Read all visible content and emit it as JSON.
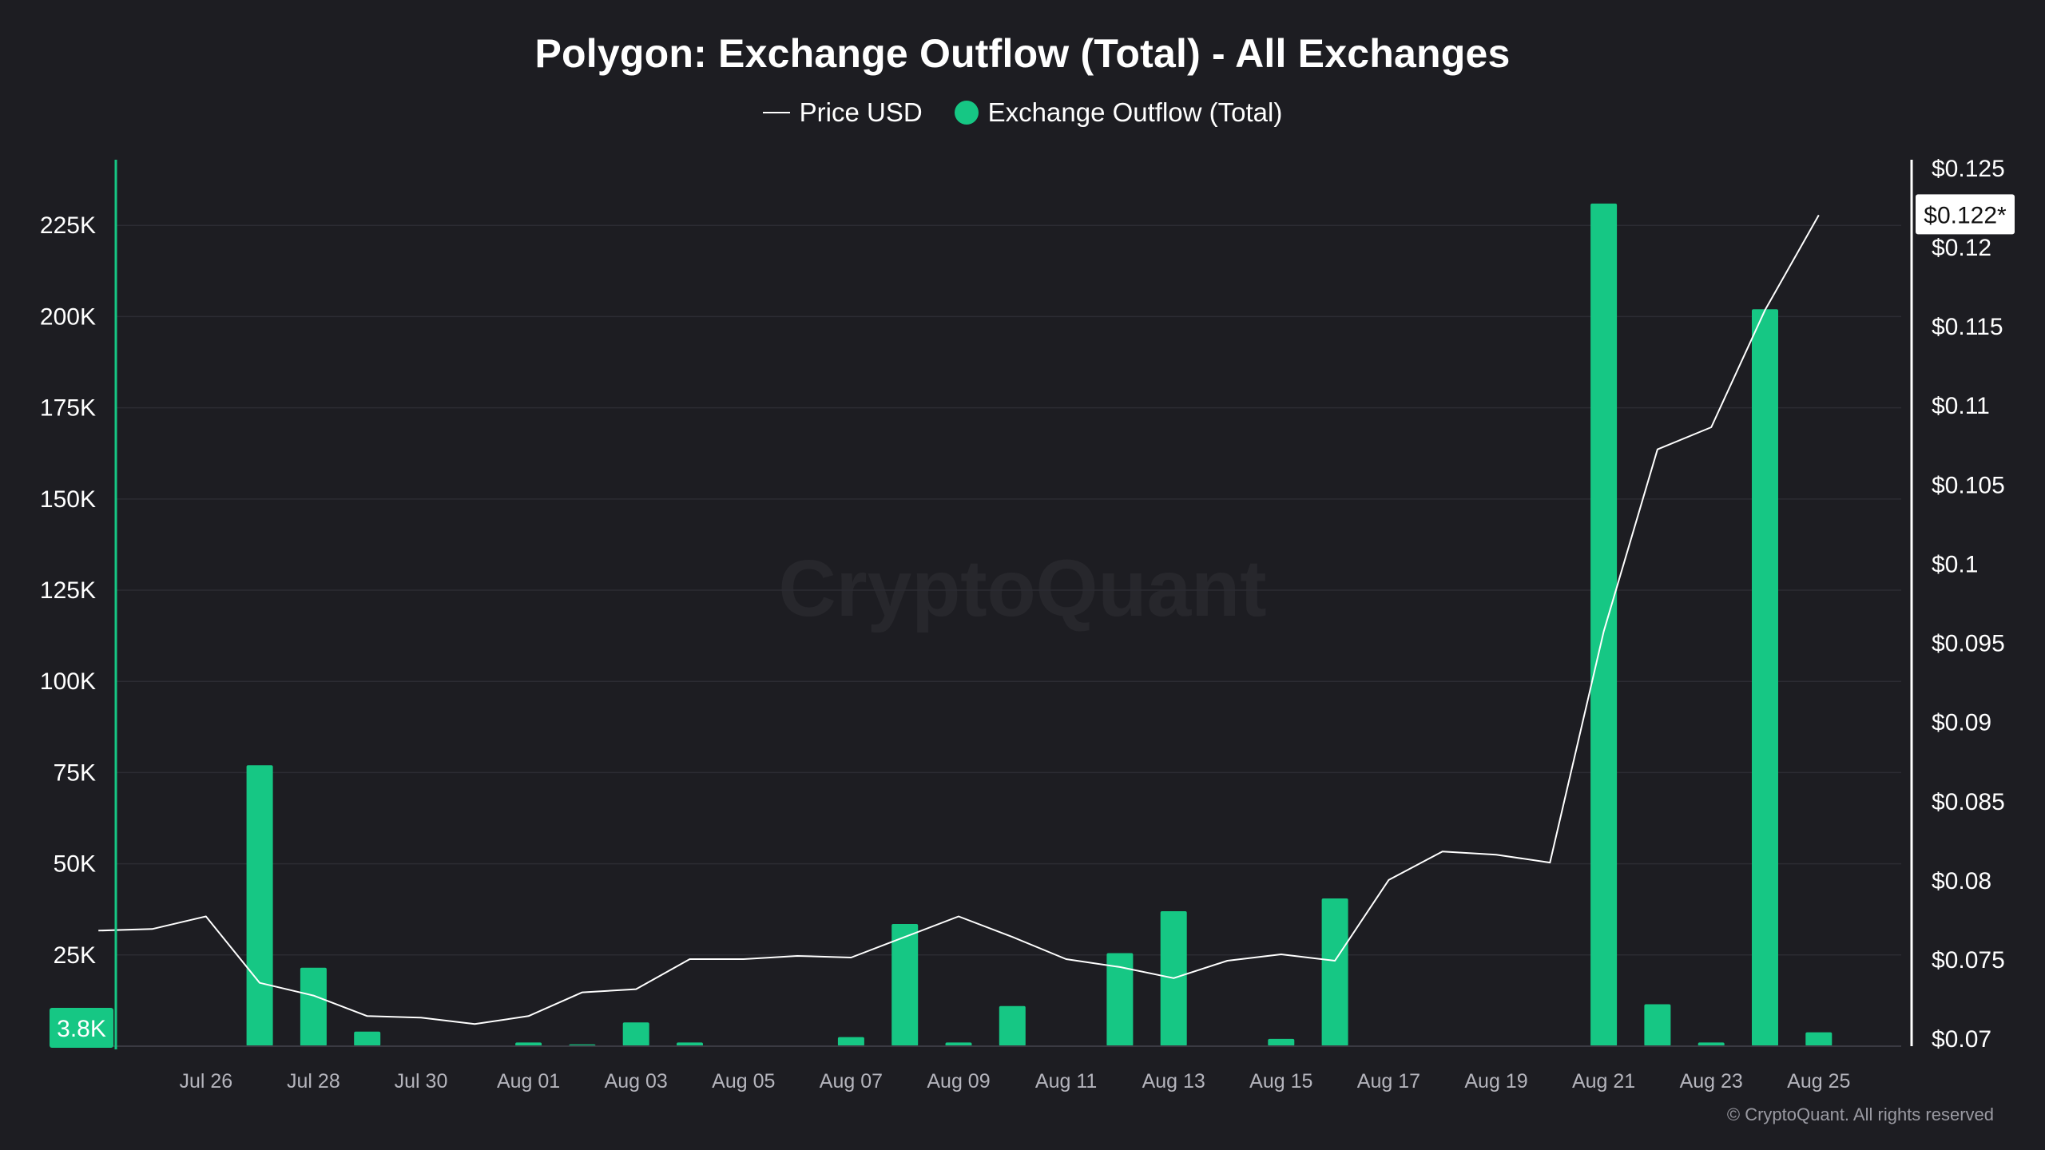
{
  "header": {
    "title": "Polygon: Exchange Outflow (Total) - All Exchanges",
    "legend_price": "Price USD",
    "legend_outflow": "Exchange Outflow (Total)"
  },
  "watermark": "CryptoQuant",
  "footer": {
    "copyright": "© CryptoQuant. All rights reserved"
  },
  "colors": {
    "background": "#1d1d22",
    "bar": "#16c784",
    "price_line": "#ffffff",
    "grid": "#2c2c33"
  },
  "badges": {
    "left_value": "3.8K",
    "right_value": "$0.122*"
  },
  "chart_data": {
    "type": "bar",
    "title": "Polygon: Exchange Outflow (Total) - All Exchanges",
    "grid": true,
    "legend_placement": "top-center",
    "x_tick_labels": [
      "Jul 26",
      "Jul 28",
      "Jul 30",
      "Aug 01",
      "Aug 03",
      "Aug 05",
      "Aug 07",
      "Aug 09",
      "Aug 11",
      "Aug 13",
      "Aug 15",
      "Aug 17",
      "Aug 19",
      "Aug 21",
      "Aug 23",
      "Aug 25"
    ],
    "left_axis": {
      "ylim": [
        0,
        243000
      ],
      "ticks": [
        25000,
        50000,
        75000,
        100000,
        125000,
        150000,
        175000,
        200000,
        225000
      ],
      "tick_labels": [
        "25K",
        "50K",
        "75K",
        "100K",
        "125K",
        "150K",
        "175K",
        "200K",
        "225K"
      ]
    },
    "right_axis": {
      "ylim": [
        0.0695,
        0.1255
      ],
      "ticks": [
        0.07,
        0.075,
        0.08,
        0.085,
        0.09,
        0.095,
        0.1,
        0.105,
        0.11,
        0.115,
        0.12,
        0.125
      ],
      "tick_labels": [
        "$0.07",
        "$0.075",
        "$0.08",
        "$0.085",
        "$0.09",
        "$0.095",
        "$0.1",
        "$0.105",
        "$0.11",
        "$0.115",
        "$0.12",
        "$0.125"
      ]
    },
    "categories": [
      "Jul 25",
      "Jul 26",
      "Jul 27",
      "Jul 28",
      "Jul 29",
      "Jul 30",
      "Jul 31",
      "Aug 01",
      "Aug 02",
      "Aug 03",
      "Aug 04",
      "Aug 05",
      "Aug 06",
      "Aug 07",
      "Aug 08",
      "Aug 09",
      "Aug 10",
      "Aug 11",
      "Aug 12",
      "Aug 13",
      "Aug 14",
      "Aug 15",
      "Aug 16",
      "Aug 17",
      "Aug 18",
      "Aug 19",
      "Aug 20",
      "Aug 21",
      "Aug 22",
      "Aug 23",
      "Aug 24",
      "Aug 25"
    ],
    "series": [
      {
        "name": "Exchange Outflow (Total)",
        "type": "bar",
        "axis": "left",
        "values": [
          0,
          0,
          77000,
          21500,
          4000,
          0,
          0,
          1000,
          500,
          6500,
          1000,
          0,
          0,
          2500,
          33500,
          1000,
          11000,
          0,
          25500,
          37000,
          0,
          2000,
          40500,
          0,
          0,
          0,
          0,
          231000,
          11500,
          1000,
          202000,
          3800
        ]
      },
      {
        "name": "Price USD",
        "type": "line",
        "axis": "right",
        "x": [
          "Jul 24",
          "Jul 25",
          "Jul 26",
          "Jul 27",
          "Jul 28",
          "Jul 29",
          "Jul 30",
          "Jul 31",
          "Aug 01",
          "Aug 02",
          "Aug 03",
          "Aug 04",
          "Aug 05",
          "Aug 06",
          "Aug 07",
          "Aug 08",
          "Aug 09",
          "Aug 10",
          "Aug 11",
          "Aug 12",
          "Aug 13",
          "Aug 14",
          "Aug 15",
          "Aug 16",
          "Aug 17",
          "Aug 18",
          "Aug 19",
          "Aug 20",
          "Aug 21",
          "Aug 22",
          "Aug 23",
          "Aug 24",
          "Aug 25"
        ],
        "values": [
          0.0768,
          0.0769,
          0.0777,
          0.0735,
          0.0727,
          0.0714,
          0.0713,
          0.0709,
          0.0714,
          0.0729,
          0.0731,
          0.075,
          0.075,
          0.0752,
          0.0751,
          0.0764,
          0.0777,
          0.0764,
          0.075,
          0.0745,
          0.0738,
          0.0749,
          0.0753,
          0.0749,
          0.08,
          0.0818,
          0.0816,
          0.0811,
          0.0957,
          0.1072,
          0.1086,
          0.116,
          0.122
        ]
      }
    ]
  }
}
